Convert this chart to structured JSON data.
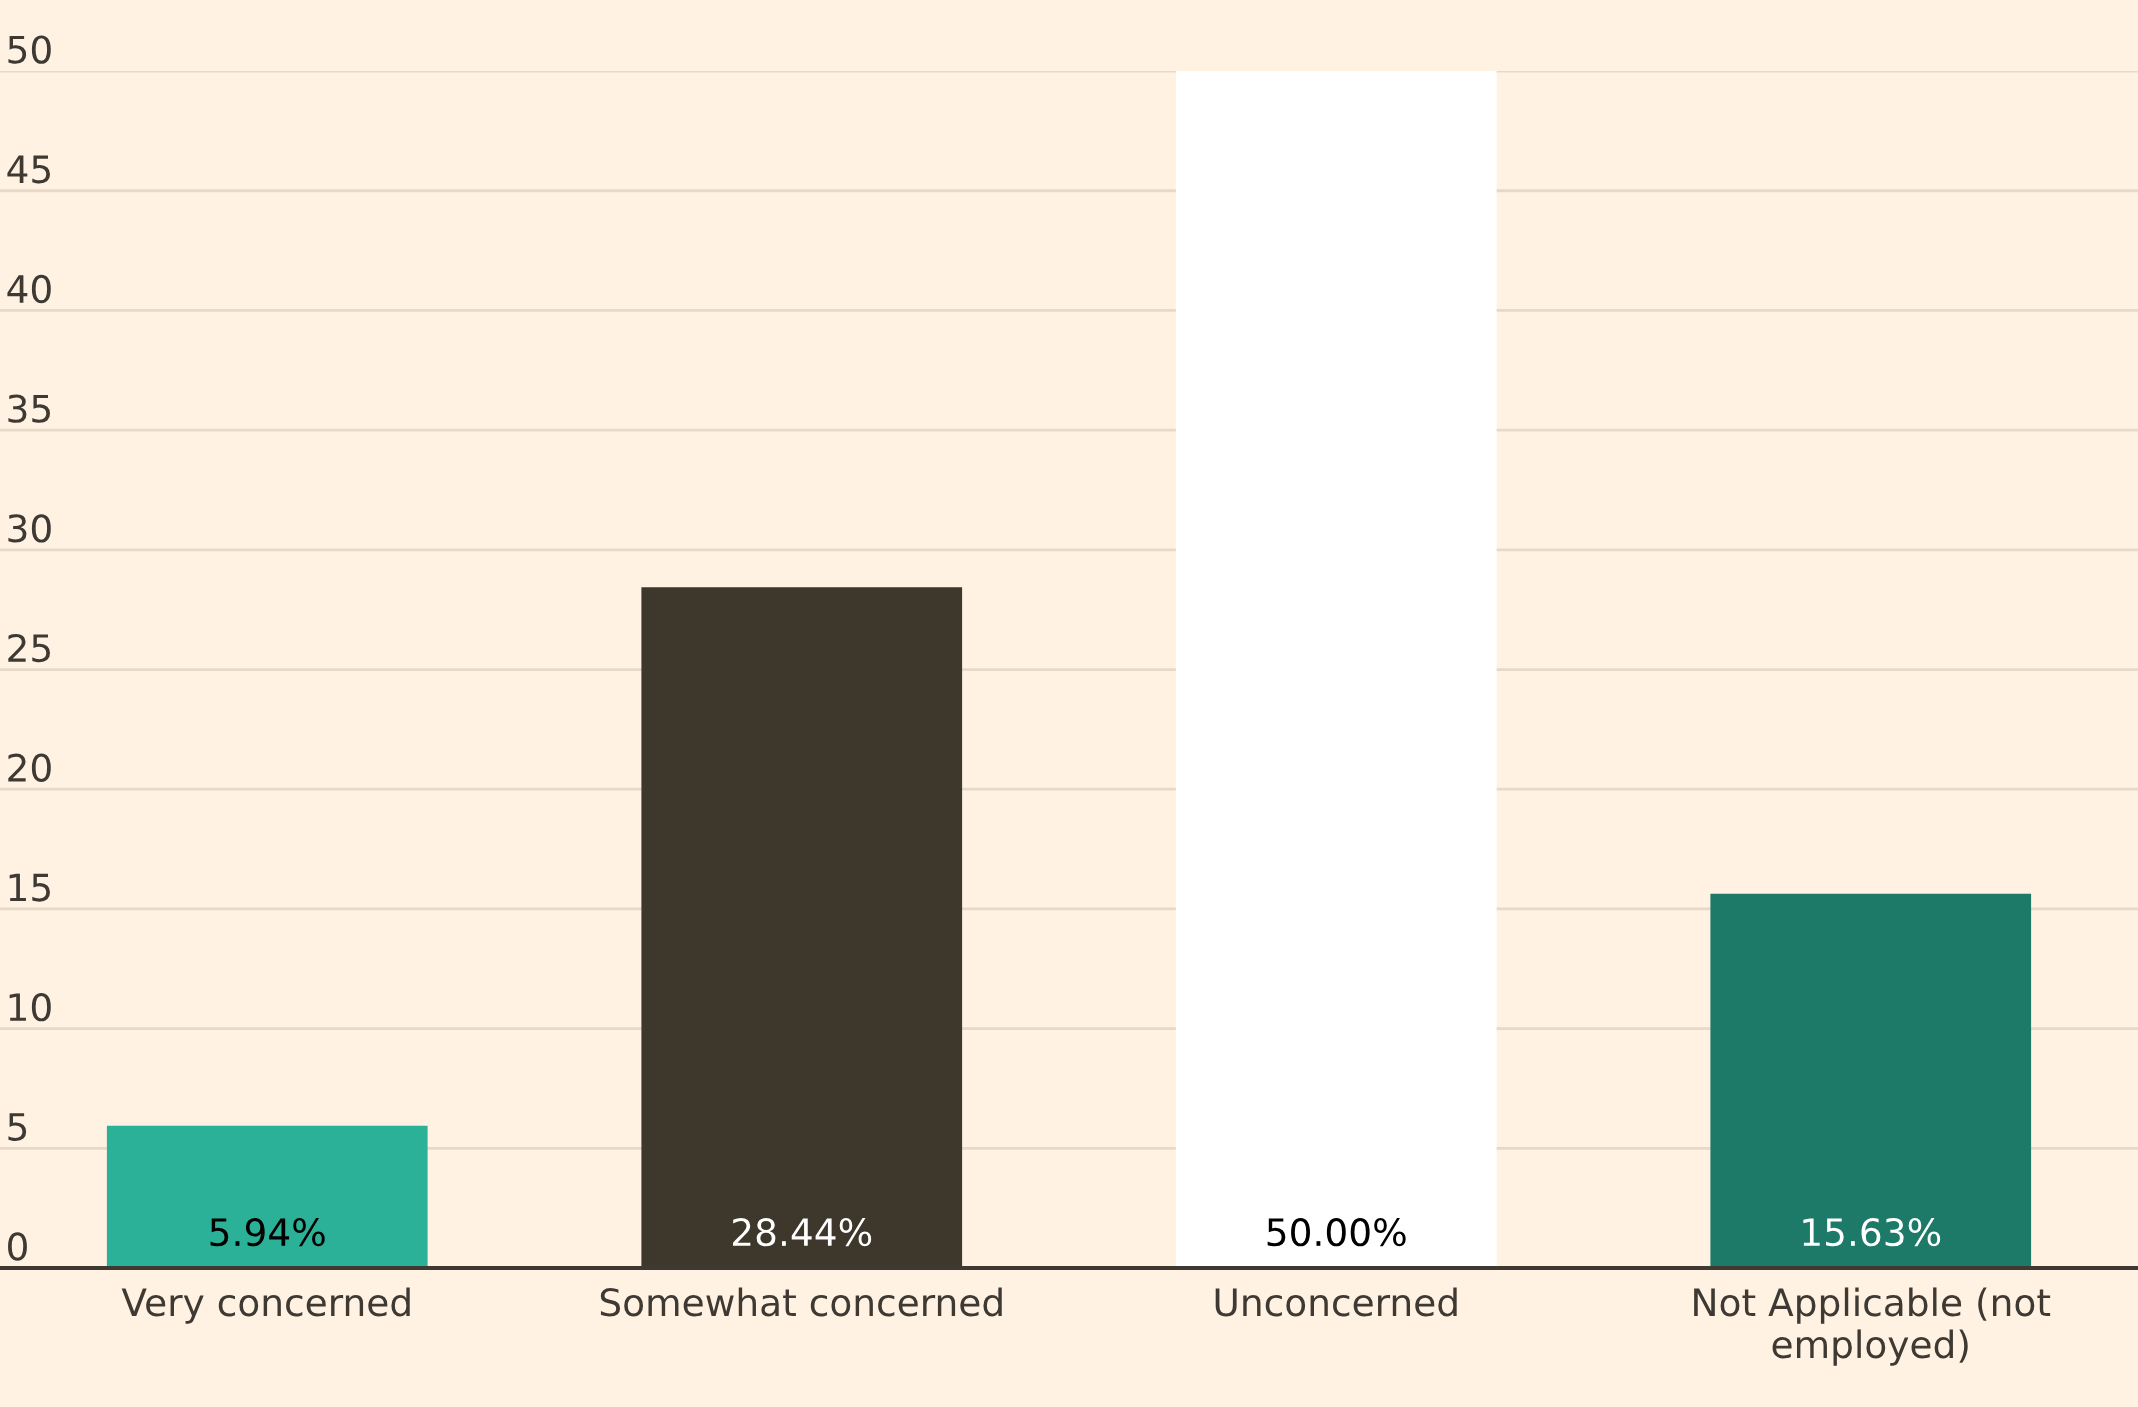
{
  "chart_data": {
    "type": "bar",
    "categories": [
      "Very concerned",
      "Somewhat concerned",
      "Unconcerned",
      "Not Applicable (not\nemployed)"
    ],
    "values": [
      5.94,
      28.44,
      50.0,
      15.63
    ],
    "colors": [
      "#2bb197",
      "#3e372b",
      "#ffffff",
      "#1e7a68"
    ],
    "value_labels": [
      "5.94%",
      "28.44%",
      "50.00%",
      "15.63%"
    ],
    "ylim": [
      0,
      50
    ],
    "yticks": [
      0,
      5,
      10,
      15,
      20,
      25,
      30,
      35,
      40,
      45,
      50
    ],
    "grid": "y"
  }
}
